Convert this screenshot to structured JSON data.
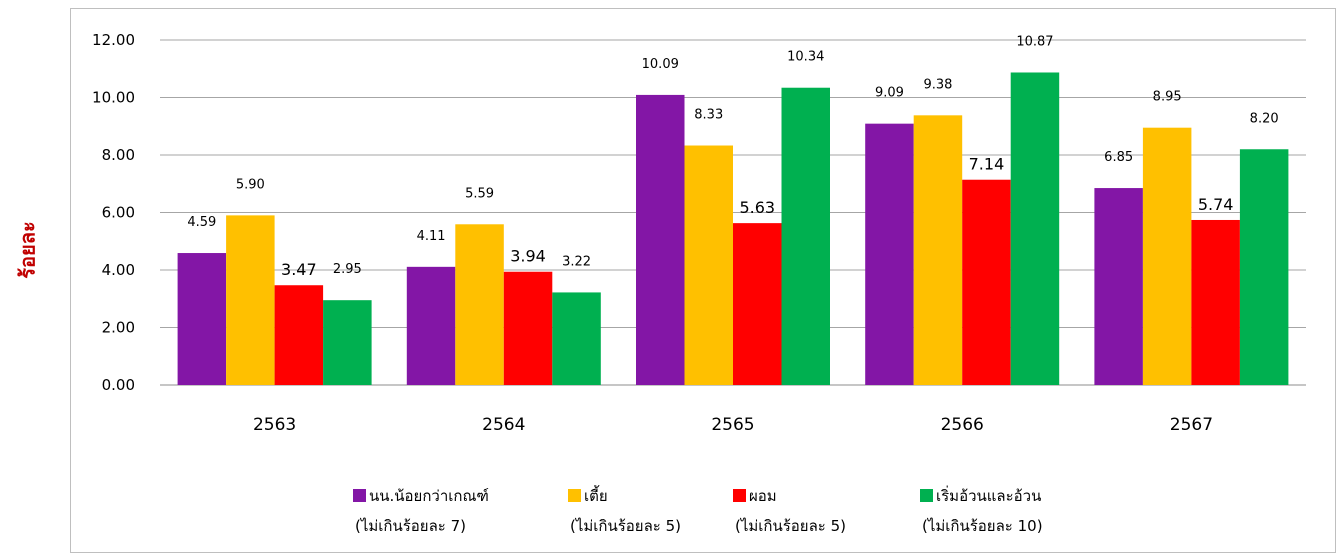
{
  "chart_data": {
    "type": "bar",
    "ylabel": "ร้อยละ",
    "ylim": [
      0,
      12
    ],
    "yticks": [
      "0.00",
      "2.00",
      "4.00",
      "6.00",
      "8.00",
      "10.00",
      "12.00"
    ],
    "grid": true,
    "legend_position": "bottom",
    "categories": [
      "2563",
      "2564",
      "2565",
      "2566",
      "2567"
    ],
    "series": [
      {
        "name": "นน.น้อยกว่าเกณฑ์",
        "note": "(ไม่เกินร้อยละ 7)",
        "color": "#8316a6",
        "values": [
          4.59,
          4.11,
          10.09,
          9.09,
          6.85
        ],
        "labels": [
          "4.59",
          "4.11",
          "10.09",
          "9.09",
          "6.85"
        ]
      },
      {
        "name": "เตี้ย",
        "note": "(ไม่เกินร้อยละ 5)",
        "color": "#ffc000",
        "values": [
          5.9,
          5.59,
          8.33,
          9.38,
          8.95
        ],
        "labels": [
          "5.90",
          "5.59",
          "8.33",
          "9.38",
          "8.95"
        ]
      },
      {
        "name": "ผอม",
        "note": "(ไม่เกินร้อยละ 5)",
        "color": "#ff0000",
        "values": [
          3.47,
          3.94,
          5.63,
          7.14,
          5.74
        ],
        "labels": [
          "3.47",
          "3.94",
          "5.63",
          "7.14",
          "5.74"
        ]
      },
      {
        "name": "เริ่มอ้วนและอ้วน",
        "note": "(ไม่เกินร้อยละ 10)",
        "color": "#00b050",
        "values": [
          2.95,
          3.22,
          10.34,
          10.87,
          8.2
        ],
        "labels": [
          "2.95",
          "3.22",
          "10.34",
          "10.87",
          "8.20"
        ]
      }
    ]
  }
}
